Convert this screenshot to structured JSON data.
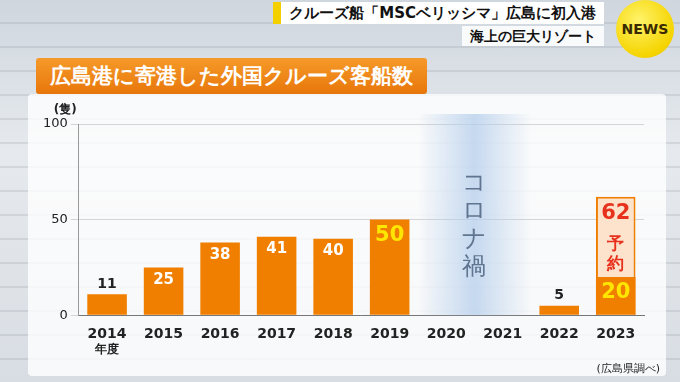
{
  "header": {
    "headline": "クルーズ船「MSCベリッシマ」広島に初入港",
    "subheadline": "海上の巨大リゾート",
    "logo": "NEWS"
  },
  "chart_data": {
    "type": "bar",
    "title": "広島港に寄港した外国クルーズ客船数",
    "categories": [
      "2014",
      "2015",
      "2016",
      "2017",
      "2018",
      "2019",
      "2020",
      "2021",
      "2022",
      "2023"
    ],
    "xlabel": "年度",
    "ylabel": "(隻)",
    "series": [
      {
        "values": [
          11,
          25,
          38,
          41,
          40,
          50,
          null,
          null,
          5,
          20
        ],
        "color": "#f07f00"
      },
      {
        "name": "予約",
        "values": [
          null,
          null,
          null,
          null,
          null,
          null,
          null,
          null,
          null,
          62
        ],
        "color": "#fde3cc"
      }
    ],
    "ylim": [
      0,
      100
    ],
    "yticks": [
      0,
      50,
      100
    ],
    "grid": true,
    "data_labels": true,
    "annotations": [
      "コロナ禍"
    ],
    "source": "(広島県調べ)"
  }
}
